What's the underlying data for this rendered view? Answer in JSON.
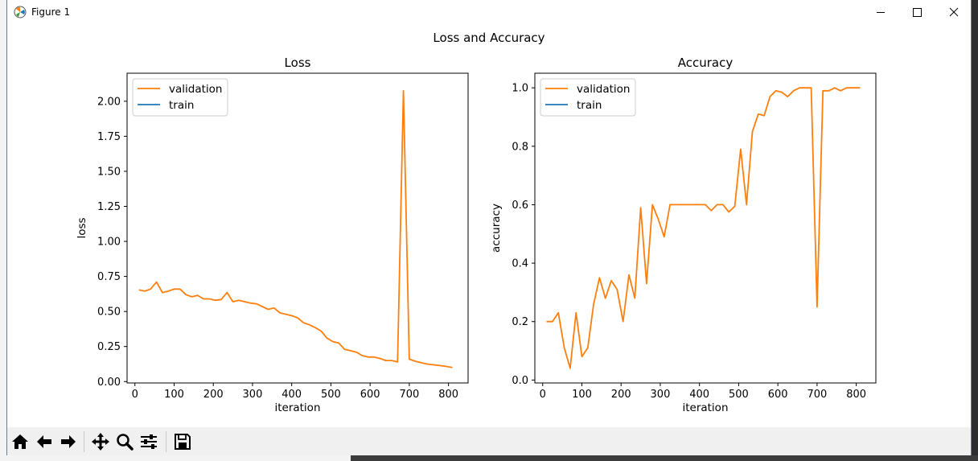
{
  "window": {
    "title": "Figure 1",
    "minimize_icon": "minimize-icon",
    "maximize_icon": "maximize-icon",
    "close_icon": "close-icon"
  },
  "figure": {
    "suptitle": "Loss and Accuracy"
  },
  "chart_data": [
    {
      "type": "line",
      "title": "Loss",
      "xlabel": "iteration",
      "ylabel": "loss",
      "xlim": [
        -20,
        850
      ],
      "ylim": [
        -0.01,
        2.2
      ],
      "xticks": [
        0,
        100,
        200,
        300,
        400,
        500,
        600,
        700,
        800
      ],
      "yticks": [
        0.0,
        0.25,
        0.5,
        0.75,
        1.0,
        1.25,
        1.5,
        1.75,
        2.0
      ],
      "ytick_labels": [
        "0.00",
        "0.25",
        "0.50",
        "0.75",
        "1.00",
        "1.25",
        "1.50",
        "1.75",
        "2.00"
      ],
      "legend": {
        "position": "upper-left",
        "entries": [
          {
            "name": "validation",
            "color": "#ff7f0e"
          },
          {
            "name": "train",
            "color": "#1f77b4"
          }
        ]
      },
      "series": [
        {
          "name": "validation",
          "color": "#ff7f0e",
          "x": [
            10,
            25,
            40,
            55,
            70,
            85,
            100,
            115,
            130,
            145,
            160,
            175,
            190,
            205,
            220,
            235,
            250,
            265,
            280,
            295,
            310,
            325,
            340,
            355,
            370,
            385,
            400,
            415,
            430,
            445,
            460,
            475,
            490,
            505,
            520,
            535,
            550,
            565,
            580,
            595,
            610,
            625,
            640,
            655,
            670,
            685,
            700,
            715,
            730,
            745,
            760,
            775,
            790,
            810
          ],
          "y": [
            0.655,
            0.645,
            0.66,
            0.71,
            0.635,
            0.645,
            0.66,
            0.66,
            0.62,
            0.605,
            0.615,
            0.59,
            0.59,
            0.58,
            0.585,
            0.635,
            0.57,
            0.58,
            0.57,
            0.56,
            0.555,
            0.535,
            0.515,
            0.525,
            0.49,
            0.48,
            0.47,
            0.455,
            0.42,
            0.405,
            0.385,
            0.36,
            0.31,
            0.285,
            0.275,
            0.23,
            0.22,
            0.21,
            0.185,
            0.175,
            0.175,
            0.165,
            0.15,
            0.15,
            0.14,
            2.075,
            0.16,
            0.145,
            0.135,
            0.125,
            0.12,
            0.115,
            0.11,
            0.1
          ],
          "note": ""
        },
        {
          "name": "train",
          "color": "#1f77b4",
          "x": [],
          "y": []
        }
      ]
    },
    {
      "type": "line",
      "title": "Accuracy",
      "xlabel": "iteration",
      "ylabel": "accuracy",
      "xlim": [
        -20,
        850
      ],
      "ylim": [
        -0.01,
        1.05
      ],
      "xticks": [
        0,
        100,
        200,
        300,
        400,
        500,
        600,
        700,
        800
      ],
      "yticks": [
        0.0,
        0.2,
        0.4,
        0.6,
        0.8,
        1.0
      ],
      "ytick_labels": [
        "0.0",
        "0.2",
        "0.4",
        "0.6",
        "0.8",
        "1.0"
      ],
      "legend": {
        "position": "upper-left",
        "entries": [
          {
            "name": "validation",
            "color": "#ff7f0e"
          },
          {
            "name": "train",
            "color": "#1f77b4"
          }
        ]
      },
      "series": [
        {
          "name": "validation",
          "color": "#ff7f0e",
          "x": [
            10,
            25,
            40,
            55,
            70,
            85,
            100,
            115,
            130,
            145,
            160,
            175,
            190,
            205,
            220,
            235,
            250,
            265,
            280,
            295,
            310,
            325,
            340,
            355,
            370,
            385,
            400,
            415,
            430,
            445,
            460,
            475,
            490,
            505,
            520,
            535,
            550,
            565,
            580,
            595,
            610,
            625,
            640,
            655,
            670,
            685,
            700,
            715,
            730,
            745,
            760,
            775,
            790,
            810
          ],
          "y": [
            0.2,
            0.2,
            0.23,
            0.11,
            0.04,
            0.23,
            0.08,
            0.11,
            0.26,
            0.35,
            0.28,
            0.34,
            0.31,
            0.2,
            0.36,
            0.28,
            0.59,
            0.33,
            0.6,
            0.55,
            0.49,
            0.6,
            0.6,
            0.6,
            0.6,
            0.6,
            0.6,
            0.6,
            0.58,
            0.6,
            0.6,
            0.575,
            0.595,
            0.79,
            0.6,
            0.85,
            0.91,
            0.905,
            0.97,
            0.99,
            0.985,
            0.97,
            0.99,
            1.0,
            1.0,
            1.0,
            0.25,
            0.99,
            0.99,
            1.0,
            0.99,
            1.0,
            1.0,
            1.0
          ],
          "note": ""
        },
        {
          "name": "train",
          "color": "#1f77b4",
          "x": [],
          "y": []
        }
      ]
    }
  ],
  "toolbar": {
    "buttons": [
      {
        "icon": "home-icon"
      },
      {
        "icon": "back-arrow-icon"
      },
      {
        "icon": "forward-arrow-icon"
      },
      {
        "icon": "pan-move-icon"
      },
      {
        "icon": "zoom-magnifier-icon"
      },
      {
        "icon": "configure-subplots-icon"
      },
      {
        "icon": "save-floppy-icon"
      }
    ]
  }
}
